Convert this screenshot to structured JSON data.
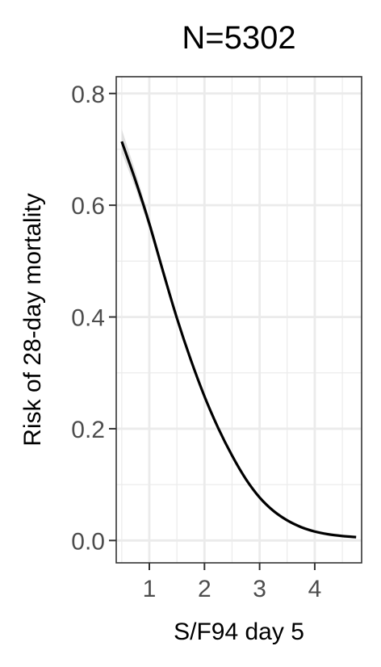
{
  "chart_data": {
    "type": "line",
    "title": "N=5302",
    "xlabel": "S/F94 day 5",
    "ylabel": "Risk of 28-day mortality",
    "xlim": [
      0.4,
      4.85
    ],
    "ylim": [
      -0.04,
      0.83
    ],
    "x_ticks": [
      1,
      2,
      3,
      4
    ],
    "x_tick_labels": [
      "1",
      "2",
      "3",
      "4"
    ],
    "y_ticks": [
      0.0,
      0.2,
      0.4,
      0.6,
      0.8
    ],
    "y_tick_labels": [
      "0.0",
      "0.2",
      "0.4",
      "0.6",
      "0.8"
    ],
    "grid": true,
    "colors": {
      "line": "#000000",
      "ribbon": "#d9d9d9",
      "grid": "#ebebeb",
      "panel_border": "#333333"
    },
    "series": [
      {
        "name": "Risk of 28-day mortality",
        "x": [
          0.5,
          0.75,
          1.0,
          1.25,
          1.5,
          1.75,
          2.0,
          2.25,
          2.5,
          2.75,
          3.0,
          3.25,
          3.5,
          3.75,
          4.0,
          4.25,
          4.5,
          4.75
        ],
        "y": [
          0.714,
          0.644,
          0.567,
          0.481,
          0.398,
          0.324,
          0.258,
          0.201,
          0.152,
          0.11,
          0.077,
          0.053,
          0.036,
          0.024,
          0.016,
          0.011,
          0.008,
          0.006
        ],
        "ci_lower": [
          0.694,
          0.63,
          0.557,
          0.474,
          0.393,
          0.32,
          0.255,
          0.198,
          0.149,
          0.107,
          0.074,
          0.05,
          0.033,
          0.021,
          0.013,
          0.008,
          0.005,
          0.003
        ],
        "ci_upper": [
          0.736,
          0.66,
          0.577,
          0.488,
          0.403,
          0.328,
          0.261,
          0.204,
          0.155,
          0.113,
          0.08,
          0.056,
          0.039,
          0.027,
          0.019,
          0.014,
          0.011,
          0.009
        ]
      }
    ]
  }
}
